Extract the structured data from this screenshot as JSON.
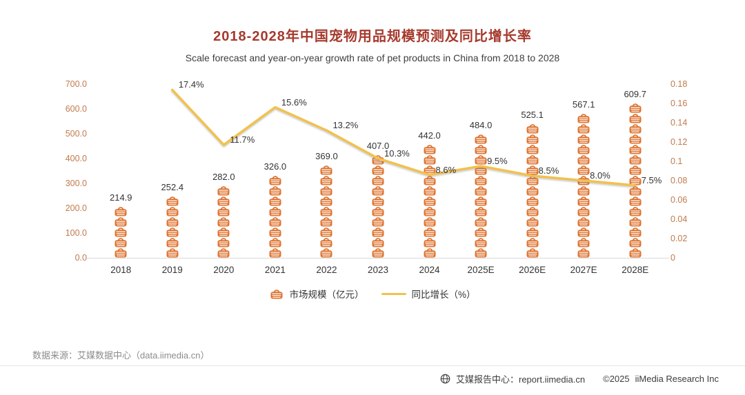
{
  "title": "2018-2028年中国宠物用品规模预测及同比增长率",
  "subtitle": "Scale forecast and year-on-year growth rate of pet products in China from 2018 to 2028",
  "chart_data": {
    "type": "bar+line",
    "categories": [
      "2018",
      "2019",
      "2020",
      "2021",
      "2022",
      "2023",
      "2024",
      "2025E",
      "2026E",
      "2027E",
      "2028E"
    ],
    "series": [
      {
        "name": "市场规模（亿元）",
        "type": "pictogram-bar",
        "axis": "left",
        "color": "#DE7330",
        "values": [
          214.9,
          252.4,
          282.0,
          326.0,
          369.0,
          407.0,
          442.0,
          484.0,
          525.1,
          567.1,
          609.7
        ],
        "labels": [
          "214.9",
          "252.4",
          "282.0",
          "326.0",
          "369.0",
          "407.0",
          "442.0",
          "484.0",
          "525.1",
          "567.1",
          "609.7"
        ]
      },
      {
        "name": "同比增长（%）",
        "type": "line",
        "axis": "right",
        "color": "#F2C14E",
        "values": [
          null,
          0.174,
          0.117,
          0.156,
          0.132,
          0.103,
          0.086,
          0.095,
          0.085,
          0.08,
          0.075
        ],
        "labels": [
          "",
          "17.4%",
          "11.7%",
          "15.6%",
          "13.2%",
          "10.3%",
          "8.6%",
          "9.5%",
          "8.5%",
          "8.0%",
          "7.5%"
        ]
      }
    ],
    "left_axis": {
      "min": 0,
      "max": 700,
      "step": 100,
      "tick_labels": [
        "0.0",
        "100.0",
        "200.0",
        "300.0",
        "400.0",
        "500.0",
        "600.0",
        "700.0"
      ]
    },
    "right_axis": {
      "min": 0,
      "max": 0.18,
      "step": 0.02,
      "tick_labels": [
        "0",
        "0.02",
        "0.04",
        "0.06",
        "0.08",
        "0.1",
        "0.12",
        "0.14",
        "0.16",
        "0.18"
      ]
    },
    "grid": false,
    "legend_position": "bottom",
    "legend": [
      {
        "label": "市场规模（亿元）",
        "icon": "basket-icon"
      },
      {
        "label": "同比增长（%）",
        "icon": "line-icon"
      }
    ]
  },
  "source_note": "数据来源：艾媒数据中心（data.iimedia.cn）",
  "footer": {
    "report_center": "艾媒报告中心：report.iimedia.cn",
    "copyright": "©2025",
    "brand": "iiMedia Research Inc"
  },
  "colors": {
    "bar": "#DE7330",
    "line": "#F2C14E",
    "title": "#A53A2D",
    "axis_text": "#C07A4C"
  }
}
